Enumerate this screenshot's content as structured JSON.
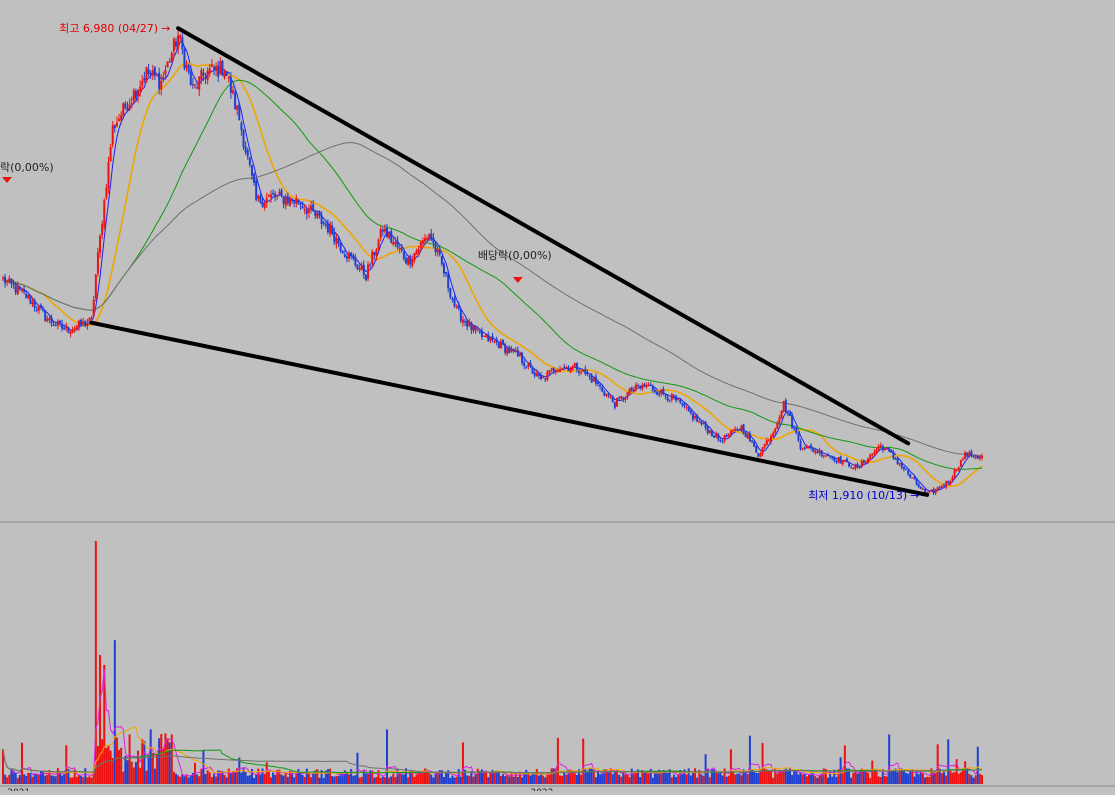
{
  "chart_data": {
    "type": "candlestick",
    "price_pane": {
      "high_annotation": {
        "label": "최고 6,980 (04/27)",
        "value": 6980,
        "date": "04/27"
      },
      "low_annotation": {
        "label": "최저 1,910 (10/13)",
        "value": 1910,
        "date": "10/13"
      },
      "event_markers": [
        {
          "label": "배당락(0,00%)"
        },
        {
          "label": "락(0,00%)"
        }
      ],
      "trendlines": [
        {
          "name": "upper",
          "from": {
            "bar": 83,
            "price": 6980
          },
          "to": {
            "bar": 429,
            "price": 2470
          }
        },
        {
          "name": "lower",
          "from": {
            "bar": 42,
            "price": 3780
          },
          "to": {
            "bar": 438,
            "price": 1910
          }
        }
      ],
      "moving_averages": [
        {
          "period": 5,
          "color": "#1e1eff"
        },
        {
          "period": 20,
          "color": "#f0a500"
        },
        {
          "period": 60,
          "color": "#119911"
        },
        {
          "period": 120,
          "color": "#707070"
        }
      ],
      "ylim": [
        1800,
        7200
      ],
      "bars": 465,
      "colors": {
        "up": "#ee1111",
        "down": "#1f3fd0"
      }
    },
    "volume_pane": {
      "moving_average_colors": [
        "#e020e0",
        "#f0a500",
        "#119911",
        "#707070"
      ]
    },
    "x_tick_labels": [
      {
        "bar": 2,
        "label": "2021"
      },
      {
        "bar": 250,
        "label": "2022"
      }
    ]
  }
}
